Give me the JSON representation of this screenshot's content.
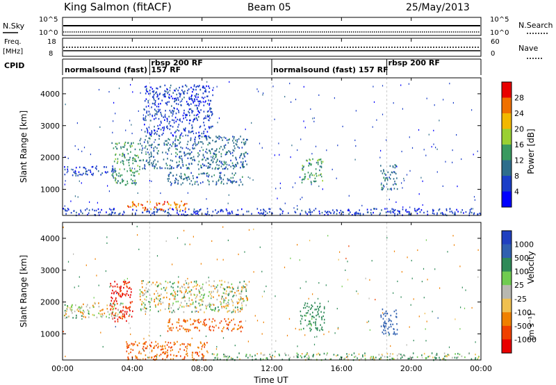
{
  "header": {
    "station": "King Salmon (fitACF)",
    "beam": "Beam 05",
    "date": "25/May/2013"
  },
  "strips": {
    "nsky_label": "N.Sky",
    "nsky_ticks": [
      "10^5",
      "10^0"
    ],
    "nsearch_label": "N.Search",
    "nsearch_ticks": [
      "10^5",
      "10^0"
    ],
    "freq_label": "Freq.",
    "freq_unit": "[MHz]",
    "freq_ticks": [
      "18",
      "8"
    ],
    "nave_label": "Nave",
    "nave_ticks": [
      "60",
      "0"
    ],
    "cpid_label": "CPID",
    "modes": [
      {
        "name": "normalsound (fast)",
        "start_hour": 0.0,
        "end_hour": 5.0
      },
      {
        "name": "rbsp 200 RF",
        "start_hour": 5.0,
        "end_hour": 12.0
      },
      {
        "name": "157 RF",
        "start_hour": 5.0,
        "end_hour": 12.0
      },
      {
        "name": "normalsound (fast) 157 RF",
        "start_hour": 12.0,
        "end_hour": 18.6
      },
      {
        "name": "rbsp 200 RF",
        "start_hour": 18.6,
        "end_hour": 24.0
      }
    ]
  },
  "axes": {
    "ylabel_range": "Slant Range [km]",
    "xlabel": "Time UT",
    "x_ticks": [
      "00:00",
      "04:00",
      "08:00",
      "12:00",
      "16:00",
      "20:00",
      "00:00"
    ],
    "y_ticks": [
      "1000",
      "2000",
      "3000",
      "4000"
    ]
  },
  "colorbars": {
    "power_label": "Power [dB]",
    "power_ticks": [
      "4",
      "8",
      "12",
      "16",
      "20",
      "24",
      "28"
    ],
    "velocity_label": "Velocity",
    "velocity_unit_label": "[m s⁻¹]",
    "velocity_ticks": [
      "1000",
      "500",
      "100",
      "25",
      "-25",
      "-100",
      "-500",
      "-1000"
    ]
  },
  "chart_data": [
    {
      "type": "heatmap",
      "title": "Power",
      "xlabel": "Time UT",
      "ylabel": "Slant Range [km]",
      "xlim_hours": [
        0,
        24
      ],
      "ylim": [
        180,
        4500
      ],
      "colorbar": {
        "label": "Power [dB]",
        "ticks": [
          4,
          8,
          12,
          16,
          20,
          24,
          28
        ],
        "colors": [
          "#0000ff",
          "#1a3ec8",
          "#2e6e8c",
          "#3a9a60",
          "#9ad032",
          "#f2b800",
          "#f07000",
          "#e80000"
        ]
      },
      "regions": [
        {
          "t0": 0.0,
          "t1": 24.0,
          "r0": 200,
          "r1": 420,
          "level": 4,
          "note": "near-range band"
        },
        {
          "t0": 3.7,
          "t1": 7.2,
          "r0": 360,
          "r1": 650,
          "level": 22
        },
        {
          "t0": 2.8,
          "t1": 4.4,
          "r0": 1150,
          "r1": 2500,
          "level": 12
        },
        {
          "t0": 4.4,
          "t1": 10.6,
          "r0": 1650,
          "r1": 2700,
          "level": 8
        },
        {
          "t0": 4.6,
          "t1": 8.6,
          "r0": 2700,
          "r1": 4300,
          "level": 4
        },
        {
          "t0": 6.0,
          "t1": 10.3,
          "r0": 1150,
          "r1": 1550,
          "level": 8
        },
        {
          "t0": 0.0,
          "t1": 3.0,
          "r0": 1450,
          "r1": 1750,
          "level": 4
        },
        {
          "t0": 13.7,
          "t1": 14.9,
          "r0": 1200,
          "r1": 2000,
          "level": 10
        },
        {
          "t0": 18.2,
          "t1": 19.2,
          "r0": 1000,
          "r1": 1800,
          "level": 6
        }
      ]
    },
    {
      "type": "heatmap",
      "title": "Velocity",
      "xlabel": "Time UT",
      "ylabel": "Slant Range [km]",
      "xlim_hours": [
        0,
        24
      ],
      "ylim": [
        180,
        4500
      ],
      "colorbar": {
        "label": "Velocity [m s⁻¹]",
        "ticks": [
          1000,
          500,
          100,
          25,
          -25,
          -100,
          -500,
          -1000
        ],
        "colors": [
          "#2040c0",
          "#3060b0",
          "#2f8a58",
          "#70cc50",
          "#b8b8b0",
          "#f0c050",
          "#f08000",
          "#f04000",
          "#e80000"
        ]
      },
      "regions": [
        {
          "t0": 3.6,
          "t1": 8.3,
          "r0": 200,
          "r1": 780,
          "velocity": -300
        },
        {
          "t0": 2.7,
          "t1": 4.0,
          "r0": 1400,
          "r1": 2700,
          "velocity": -800
        },
        {
          "t0": 0.0,
          "t1": 3.5,
          "r0": 1500,
          "r1": 2000,
          "velocity": 0
        },
        {
          "t0": 4.4,
          "t1": 10.6,
          "r0": 1700,
          "r1": 2700,
          "velocity": 0
        },
        {
          "t0": 6.0,
          "t1": 10.3,
          "r0": 1100,
          "r1": 1500,
          "velocity": -300
        },
        {
          "t0": 13.6,
          "t1": 15.0,
          "r0": 1100,
          "r1": 2000,
          "velocity": 150
        },
        {
          "t0": 18.2,
          "t1": 19.2,
          "r0": 1000,
          "r1": 1800,
          "velocity": 600
        },
        {
          "t0": 8.5,
          "t1": 24.0,
          "r0": 200,
          "r1": 420,
          "velocity": 50
        }
      ]
    }
  ]
}
